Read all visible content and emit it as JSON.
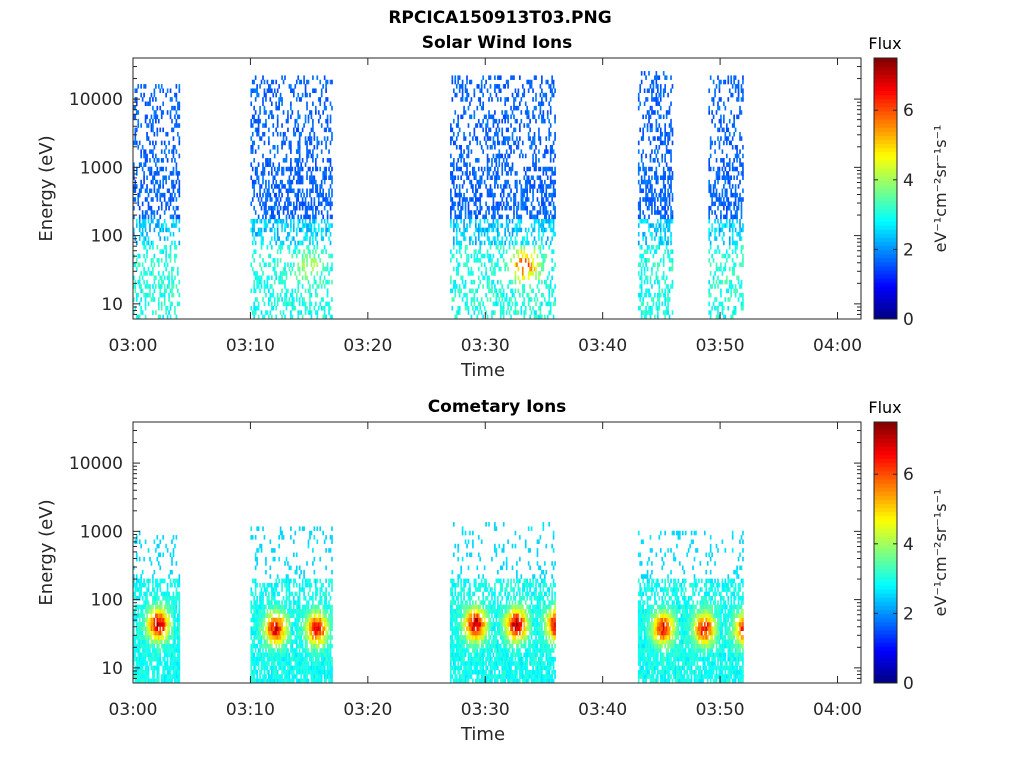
{
  "figure": {
    "title": "RPCICA150913T03.PNG"
  },
  "chart_data": [
    {
      "type": "heatmap",
      "title": "Solar Wind Ions",
      "xlabel": "Time",
      "ylabel": "Energy (eV)",
      "x_ticks": [
        "03:00",
        "03:10",
        "03:20",
        "03:30",
        "03:40",
        "03:50",
        "04:00"
      ],
      "x_range": [
        "03:00",
        "04:02"
      ],
      "y_scale": "log",
      "y_ticks": [
        10,
        100,
        1000,
        10000
      ],
      "y_tick_labels": [
        "10",
        "100",
        "1000",
        "10000"
      ],
      "y_range": [
        6,
        40000
      ],
      "colorbar": {
        "label": "Flux",
        "unit": "eV⁻¹cm⁻²sr⁻¹s⁻¹",
        "range": [
          0,
          7.5
        ],
        "ticks": [
          "0",
          "2",
          "4",
          "6"
        ],
        "colormap": "jet"
      },
      "bursts": [
        {
          "start": "03:00",
          "end": "03:04",
          "energy_range": [
            6,
            16000
          ],
          "peak_energy": 40,
          "flux_range": [
            1.3,
            3.5
          ]
        },
        {
          "start": "03:10",
          "end": "03:17",
          "energy_range": [
            6,
            20000
          ],
          "peak_energy": 35,
          "flux_range": [
            1.3,
            4.5
          ]
        },
        {
          "start": "03:27",
          "end": "03:36",
          "energy_range": [
            6,
            20000
          ],
          "peak_energy": 35,
          "flux_range": [
            1.3,
            6.8
          ]
        },
        {
          "start": "03:43",
          "end": "03:46",
          "energy_range": [
            6,
            25000
          ],
          "peak_energy": 25,
          "flux_range": [
            1.3,
            3.5
          ]
        },
        {
          "start": "03:49",
          "end": "03:52",
          "energy_range": [
            6,
            20000
          ],
          "peak_energy": 25,
          "flux_range": [
            1.3,
            3.8
          ]
        }
      ]
    },
    {
      "type": "heatmap",
      "title": "Cometary Ions",
      "xlabel": "Time",
      "ylabel": "Energy (eV)",
      "x_ticks": [
        "03:00",
        "03:10",
        "03:20",
        "03:30",
        "03:40",
        "03:50",
        "04:00"
      ],
      "x_range": [
        "03:00",
        "04:02"
      ],
      "y_scale": "log",
      "y_ticks": [
        10,
        100,
        1000,
        10000
      ],
      "y_tick_labels": [
        "10",
        "100",
        "1000",
        "10000"
      ],
      "y_range": [
        6,
        40000
      ],
      "colorbar": {
        "label": "Flux",
        "unit": "eV⁻¹cm⁻²sr⁻¹s⁻¹",
        "range": [
          0,
          7.5
        ],
        "ticks": [
          "0",
          "2",
          "4",
          "6"
        ],
        "colormap": "jet"
      },
      "bursts": [
        {
          "start": "03:00",
          "end": "03:04",
          "energy_range": [
            6,
            900
          ],
          "peak_energy": 40,
          "flux_range": [
            2.5,
            7.3
          ]
        },
        {
          "start": "03:10",
          "end": "03:17",
          "energy_range": [
            6,
            1100
          ],
          "peak_energy": 35,
          "flux_range": [
            2.5,
            7.0
          ]
        },
        {
          "start": "03:27",
          "end": "03:36",
          "energy_range": [
            6,
            1300
          ],
          "peak_energy": 40,
          "flux_range": [
            2.5,
            7.5
          ]
        },
        {
          "start": "03:43",
          "end": "03:52",
          "energy_range": [
            6,
            900
          ],
          "peak_energy": 35,
          "flux_range": [
            2.5,
            6.8
          ]
        }
      ]
    }
  ]
}
